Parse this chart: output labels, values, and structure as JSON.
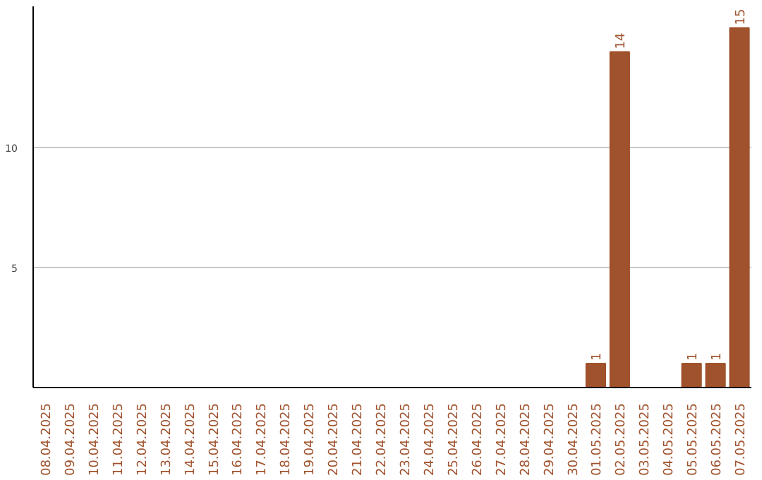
{
  "chart_data": {
    "type": "bar",
    "categories": [
      "08.04.2025",
      "09.04.2025",
      "10.04.2025",
      "11.04.2025",
      "12.04.2025",
      "13.04.2025",
      "14.04.2025",
      "15.04.2025",
      "16.04.2025",
      "17.04.2025",
      "18.04.2025",
      "19.04.2025",
      "20.04.2025",
      "21.04.2025",
      "22.04.2025",
      "23.04.2025",
      "24.04.2025",
      "25.04.2025",
      "26.04.2025",
      "27.04.2025",
      "28.04.2025",
      "29.04.2025",
      "30.04.2025",
      "01.05.2025",
      "02.05.2025",
      "03.05.2025",
      "04.05.2025",
      "05.05.2025",
      "06.05.2025",
      "07.05.2025"
    ],
    "values": [
      0,
      0,
      0,
      0,
      0,
      0,
      0,
      0,
      0,
      0,
      0,
      0,
      0,
      0,
      0,
      0,
      0,
      0,
      0,
      0,
      0,
      0,
      0,
      1,
      14,
      0,
      0,
      1,
      1,
      15
    ],
    "value_labels": [
      null,
      null,
      null,
      null,
      null,
      null,
      null,
      null,
      null,
      null,
      null,
      null,
      null,
      null,
      null,
      null,
      null,
      null,
      null,
      null,
      null,
      null,
      null,
      "1",
      "14",
      null,
      null,
      "1",
      "1",
      "15"
    ],
    "color": "#a0522d",
    "ylim": [
      0,
      15.9
    ],
    "yticks": [
      5,
      10
    ],
    "grid": "y"
  }
}
